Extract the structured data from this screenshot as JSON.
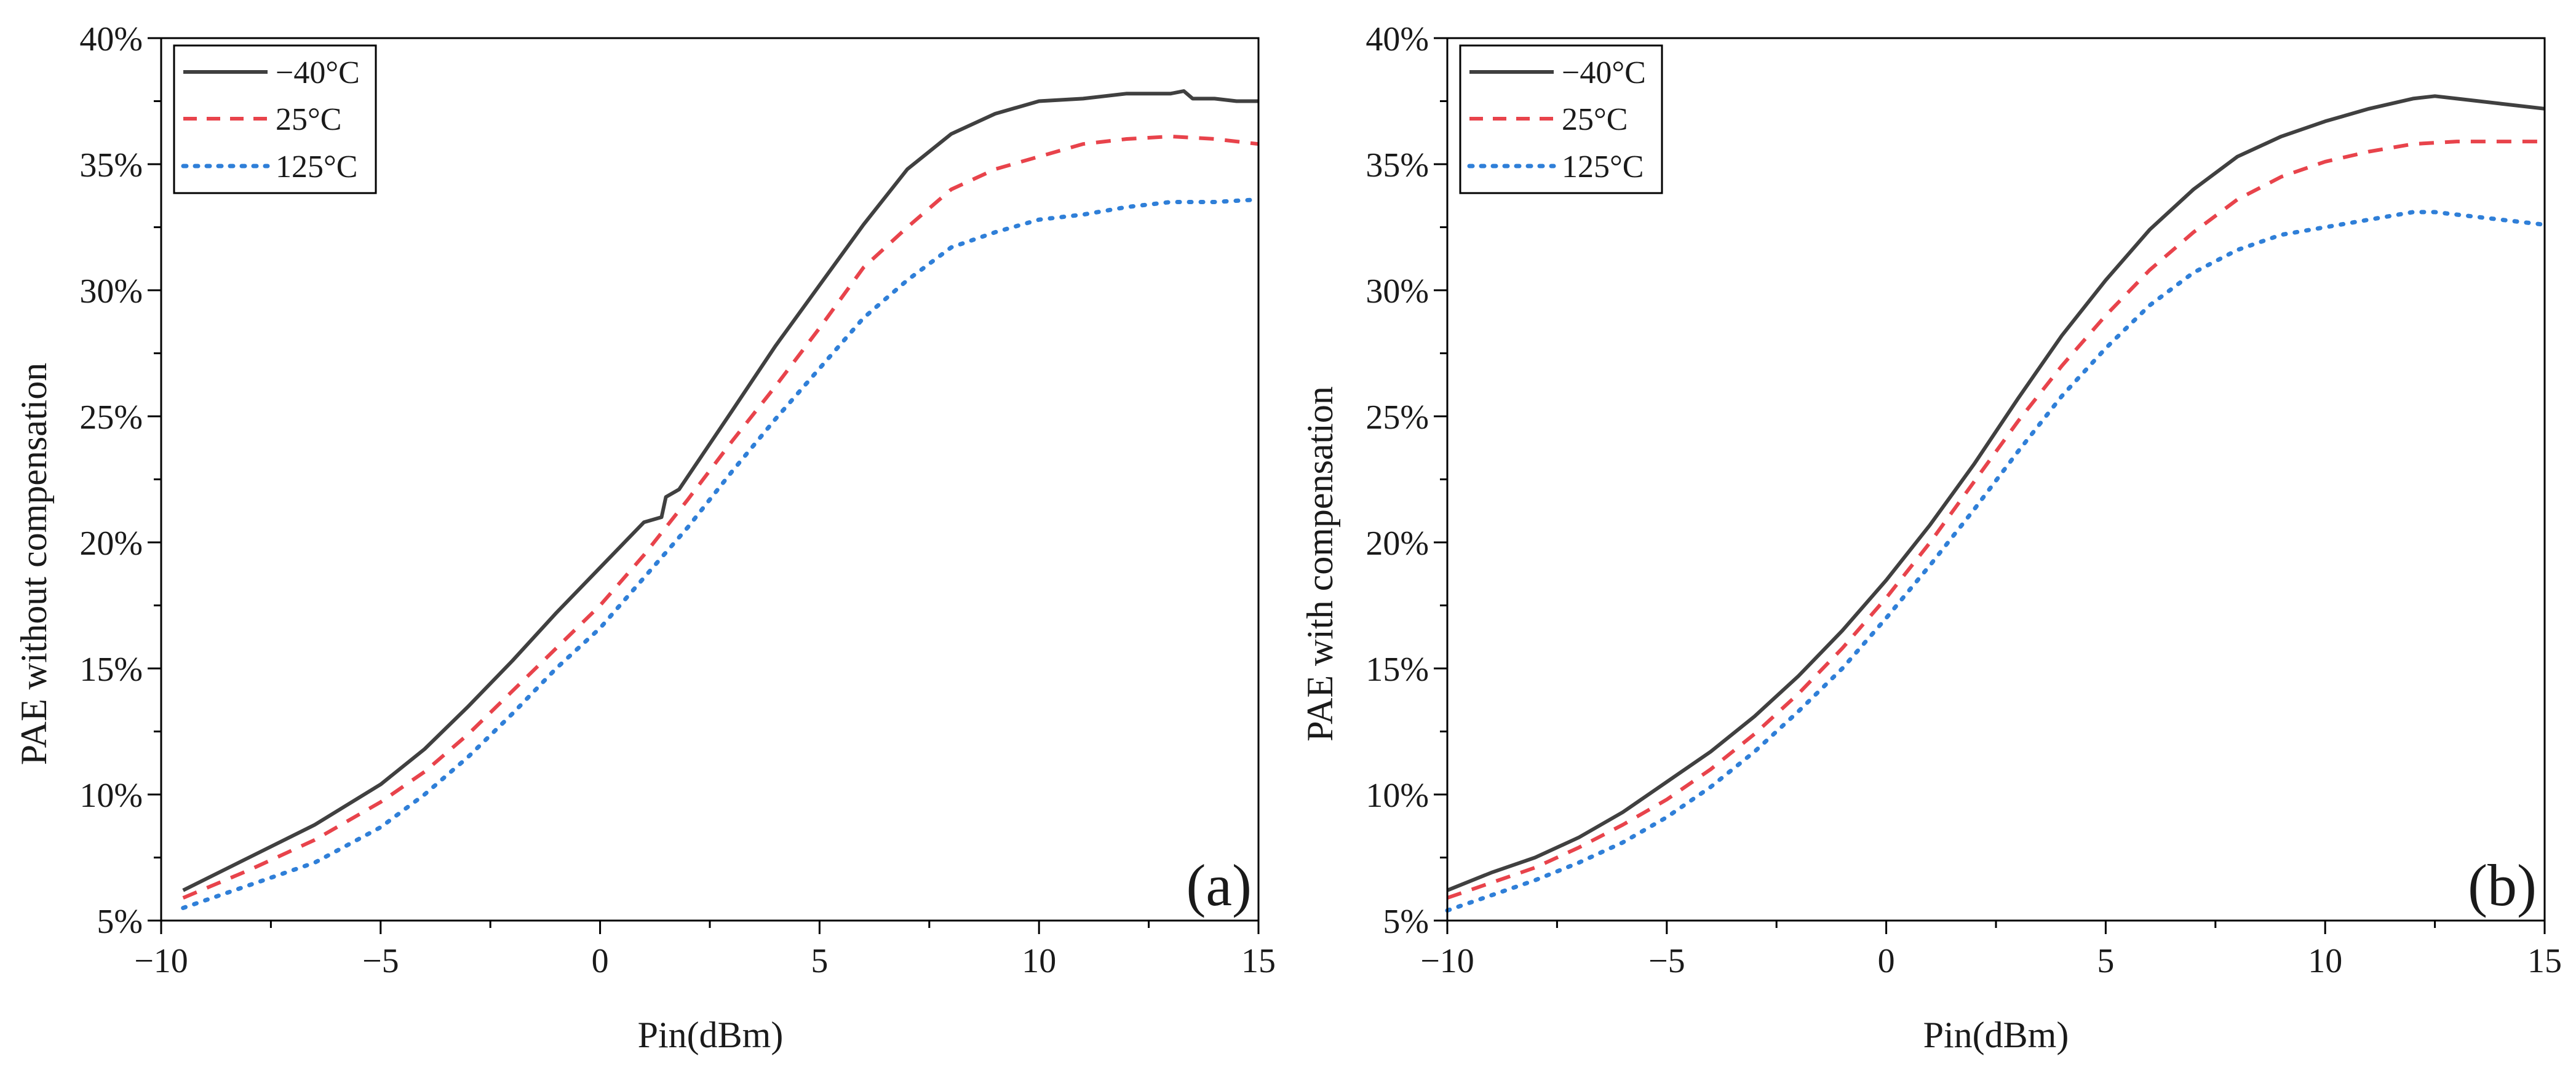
{
  "figure": {
    "colors": {
      "minus40": "#404040",
      "plus25": "#e8434b",
      "plus125": "#2f7fd8",
      "axis": "#000000"
    }
  },
  "chart_data": [
    {
      "type": "line",
      "panel_label": "(a)",
      "title": "",
      "xlabel": "Pin(dBm)",
      "ylabel": "PAE without compensation",
      "xlim": [
        -10,
        15
      ],
      "ylim": [
        5,
        40
      ],
      "xticks": [
        -10,
        -5,
        0,
        5,
        10,
        15
      ],
      "xtick_labels": [
        "−10",
        "−5",
        "0",
        "5",
        "10",
        "15"
      ],
      "yticks": [
        5,
        10,
        15,
        20,
        25,
        30,
        35,
        40
      ],
      "ytick_labels": [
        "5%",
        "10%",
        "15%",
        "20%",
        "25%",
        "30%",
        "35%",
        "40%"
      ],
      "grid": false,
      "legend_position": "top-left",
      "series": [
        {
          "name": "−40°C",
          "style": "solid",
          "color": "#404040",
          "x": [
            -9.5,
            -8,
            -6.5,
            -5,
            -4,
            -3,
            -2,
            -1,
            0,
            1,
            1.4,
            1.5,
            1.8,
            3,
            4,
            5,
            6,
            7,
            8,
            9,
            10,
            11,
            12,
            12.5,
            13,
            13.3,
            13.5,
            14,
            14.5,
            15
          ],
          "y": [
            6.2,
            7.5,
            8.8,
            10.4,
            11.8,
            13.5,
            15.3,
            17.2,
            19.0,
            20.8,
            21.0,
            21.8,
            22.1,
            25.2,
            27.8,
            30.2,
            32.6,
            34.8,
            36.2,
            37.0,
            37.5,
            37.6,
            37.8,
            37.8,
            37.8,
            37.9,
            37.6,
            37.6,
            37.5,
            37.5
          ]
        },
        {
          "name": "25°C",
          "style": "dashed",
          "color": "#e8434b",
          "x": [
            -9.5,
            -8,
            -6.5,
            -5,
            -4,
            -3,
            -2,
            -1,
            0,
            1,
            2,
            3,
            4,
            5,
            6,
            7,
            8,
            9,
            10,
            11,
            12,
            13,
            14,
            15
          ],
          "y": [
            5.9,
            7.0,
            8.2,
            9.7,
            10.9,
            12.4,
            14.1,
            15.8,
            17.5,
            19.5,
            21.7,
            24.0,
            26.2,
            28.5,
            30.9,
            32.5,
            34.0,
            34.8,
            35.3,
            35.8,
            36.0,
            36.1,
            36.0,
            35.8
          ]
        },
        {
          "name": "125°C",
          "style": "dotted",
          "color": "#2f7fd8",
          "x": [
            -9.5,
            -8,
            -6.5,
            -5,
            -4,
            -3,
            -2,
            -1,
            0,
            1,
            2,
            3,
            4,
            5,
            6,
            7,
            8,
            9,
            10,
            11,
            12,
            13,
            14,
            15
          ],
          "y": [
            5.5,
            6.4,
            7.3,
            8.7,
            10.0,
            11.5,
            13.2,
            15.0,
            16.6,
            18.6,
            20.6,
            22.8,
            24.9,
            26.9,
            28.9,
            30.4,
            31.7,
            32.3,
            32.8,
            33.0,
            33.3,
            33.5,
            33.5,
            33.6
          ]
        }
      ]
    },
    {
      "type": "line",
      "panel_label": "(b)",
      "title": "",
      "xlabel": "Pin(dBm)",
      "ylabel": "PAE with compensation",
      "xlim": [
        -10,
        15
      ],
      "ylim": [
        5,
        40
      ],
      "xticks": [
        -10,
        -5,
        0,
        5,
        10,
        15
      ],
      "xtick_labels": [
        "−10",
        "−5",
        "0",
        "5",
        "10",
        "15"
      ],
      "yticks": [
        5,
        10,
        15,
        20,
        25,
        30,
        35,
        40
      ],
      "ytick_labels": [
        "5%",
        "10%",
        "15%",
        "20%",
        "25%",
        "30%",
        "35%",
        "40%"
      ],
      "grid": false,
      "legend_position": "top-left",
      "series": [
        {
          "name": "−40°C",
          "style": "solid",
          "color": "#404040",
          "x": [
            -10,
            -9,
            -8,
            -7,
            -6,
            -5,
            -4,
            -3,
            -2,
            -1,
            0,
            1,
            2,
            3,
            4,
            5,
            6,
            7,
            8,
            9,
            10,
            11,
            12,
            12.5,
            13,
            14,
            15
          ],
          "y": [
            6.2,
            6.9,
            7.5,
            8.3,
            9.3,
            10.5,
            11.7,
            13.1,
            14.7,
            16.5,
            18.5,
            20.7,
            23.1,
            25.7,
            28.2,
            30.4,
            32.4,
            34.0,
            35.3,
            36.1,
            36.7,
            37.2,
            37.6,
            37.7,
            37.6,
            37.4,
            37.2
          ]
        },
        {
          "name": "25°C",
          "style": "dashed",
          "color": "#e8434b",
          "x": [
            -10,
            -9,
            -8,
            -7,
            -6,
            -5,
            -4,
            -3,
            -2,
            -1,
            0,
            1,
            2,
            3,
            4,
            5,
            6,
            7,
            8,
            9,
            10,
            11,
            12,
            13,
            14,
            15
          ],
          "y": [
            5.9,
            6.5,
            7.1,
            7.9,
            8.8,
            9.8,
            11.0,
            12.4,
            14.0,
            15.8,
            17.8,
            20.0,
            22.4,
            24.8,
            27.0,
            29.0,
            30.8,
            32.3,
            33.6,
            34.5,
            35.1,
            35.5,
            35.8,
            35.9,
            35.9,
            35.9
          ]
        },
        {
          "name": "125°C",
          "style": "dotted",
          "color": "#2f7fd8",
          "x": [
            -10,
            -9,
            -8,
            -7,
            -6,
            -5,
            -4,
            -3,
            -2,
            -1,
            0,
            1,
            2,
            3,
            4,
            5,
            6,
            7,
            8,
            9,
            10,
            11,
            12,
            12.5,
            13,
            14,
            15
          ],
          "y": [
            5.4,
            6.0,
            6.6,
            7.3,
            8.1,
            9.1,
            10.3,
            11.7,
            13.3,
            15.0,
            17.0,
            19.1,
            21.3,
            23.6,
            25.8,
            27.7,
            29.4,
            30.7,
            31.6,
            32.2,
            32.5,
            32.8,
            33.1,
            33.1,
            33.0,
            32.8,
            32.6
          ]
        }
      ]
    }
  ]
}
